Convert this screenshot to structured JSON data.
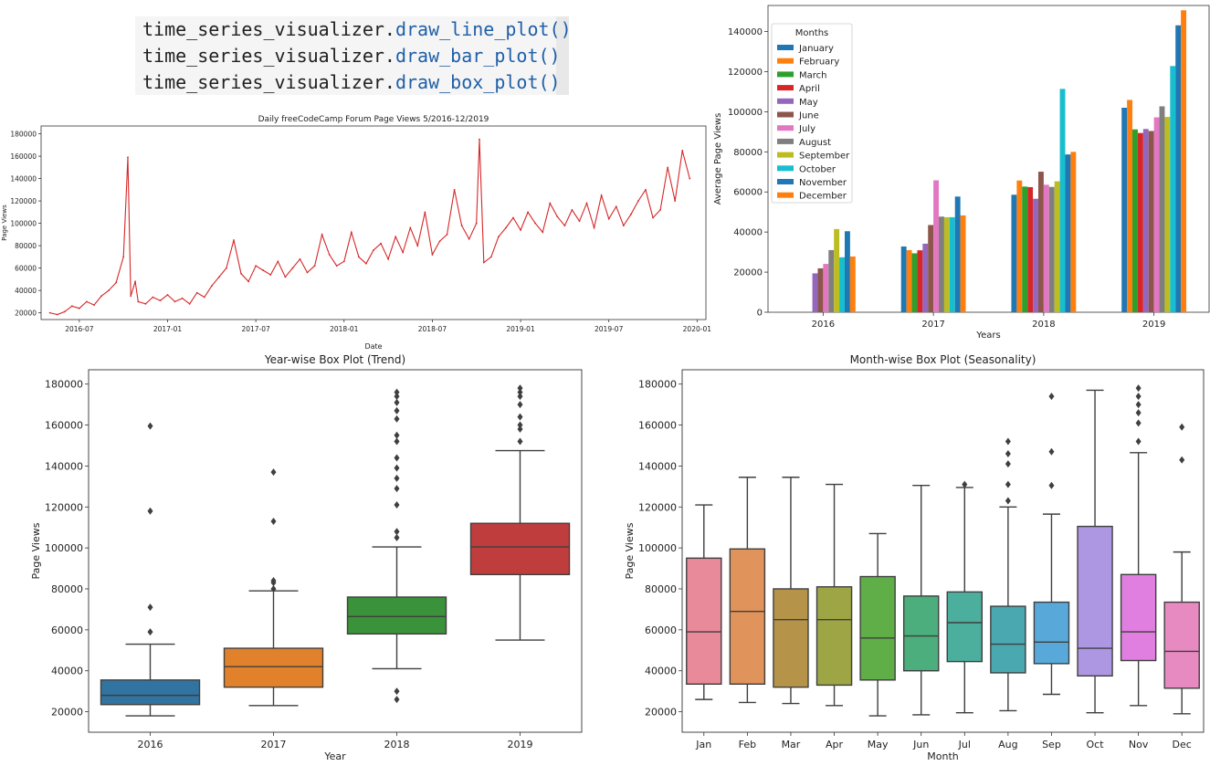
{
  "code": {
    "lines": [
      {
        "prefix": "time_series_visualizer.",
        "call": "draw_line_plot()"
      },
      {
        "prefix": "time_series_visualizer.",
        "call": "draw_bar_plot()"
      },
      {
        "prefix": "time_series_visualizer.",
        "call": "draw_box_plot()"
      }
    ]
  },
  "colors": {
    "line": "#d62728",
    "months": [
      "#1f77b4",
      "#ff7f0e",
      "#2ca02c",
      "#d62728",
      "#9467bd",
      "#8c564b",
      "#e377c2",
      "#7f7f7f",
      "#bcbd22",
      "#17becf",
      "#1f77b4",
      "#ff7f0e"
    ],
    "year_box": [
      "#3274a1",
      "#e1812c",
      "#3a923a",
      "#c03d3e"
    ],
    "month_box": [
      "#e88a9a",
      "#e0935a",
      "#b5944a",
      "#9da545",
      "#5fae48",
      "#4cae7c",
      "#4cae9c",
      "#4aa8b0",
      "#58a9d9",
      "#ae97e2",
      "#e07fe0",
      "#e88ac2"
    ]
  },
  "chart_data": [
    {
      "id": "line",
      "type": "line",
      "title": "Daily freeCodeCamp Forum Page Views 5/2016-12/2019",
      "xlabel": "Date",
      "ylabel": "Page Views",
      "xtick_labels": [
        "2016-07",
        "2017-01",
        "2017-07",
        "2018-01",
        "2018-07",
        "2019-01",
        "2019-07",
        "2020-01"
      ],
      "xtick_months": [
        2,
        8,
        14,
        20,
        26,
        32,
        38,
        44
      ],
      "xlim_months": [
        -0.6,
        44.6
      ],
      "ylim": [
        14000,
        187000
      ],
      "yticks": [
        20000,
        40000,
        60000,
        80000,
        100000,
        120000,
        140000,
        160000,
        180000
      ],
      "ytick_labels": [
        "20000",
        "40000",
        "60000",
        "80000",
        "100000",
        "120000",
        "140000",
        "160000",
        "180000"
      ],
      "x_months": [
        0,
        0.5,
        1,
        1.5,
        2,
        2.5,
        3,
        3.5,
        4,
        4.5,
        5,
        5.3,
        5.5,
        5.8,
        6,
        6.5,
        7,
        7.5,
        8,
        8.5,
        9,
        9.5,
        10,
        10.5,
        11,
        11.5,
        12,
        12.5,
        13,
        13.5,
        14,
        14.5,
        15,
        15.5,
        16,
        16.5,
        17,
        17.5,
        18,
        18.5,
        19,
        19.5,
        20,
        20.5,
        21,
        21.5,
        22,
        22.5,
        23,
        23.5,
        24,
        24.5,
        25,
        25.5,
        26,
        26.5,
        27,
        27.5,
        28,
        28.5,
        29,
        29.2,
        29.5,
        30,
        30.5,
        31,
        31.5,
        32,
        32.5,
        33,
        33.5,
        34,
        34.5,
        35,
        35.5,
        36,
        36.5,
        37,
        37.5,
        38,
        38.5,
        39,
        39.5,
        40,
        40.5,
        41,
        41.5,
        42,
        42.5,
        43,
        43.5
      ],
      "values": [
        20000,
        18500,
        21000,
        26000,
        24000,
        30000,
        27000,
        35000,
        40000,
        47000,
        70000,
        159000,
        35000,
        48000,
        30000,
        28000,
        34000,
        31000,
        36000,
        30000,
        33000,
        28000,
        38000,
        34000,
        44000,
        52000,
        60000,
        85000,
        55000,
        48000,
        62000,
        58000,
        54000,
        66000,
        52000,
        60000,
        68000,
        56000,
        62000,
        90000,
        72000,
        62000,
        66000,
        92000,
        70000,
        64000,
        76000,
        82000,
        68000,
        88000,
        74000,
        96000,
        80000,
        110000,
        72000,
        84000,
        90000,
        130000,
        98000,
        86000,
        100000,
        175000,
        65000,
        70000,
        88000,
        96000,
        105000,
        94000,
        110000,
        100000,
        92000,
        118000,
        106000,
        98000,
        112000,
        102000,
        118000,
        96000,
        125000,
        104000,
        115000,
        98000,
        108000,
        120000,
        130000,
        105000,
        112000,
        150000,
        120000,
        165000,
        140000
      ]
    },
    {
      "id": "bar",
      "type": "bar",
      "xlabel": "Years",
      "ylabel": "Average Page Views",
      "categories": [
        "2016",
        "2017",
        "2018",
        "2019"
      ],
      "ylim": [
        0,
        153000
      ],
      "yticks": [
        0,
        20000,
        40000,
        60000,
        80000,
        100000,
        120000,
        140000
      ],
      "ytick_labels": [
        "0",
        "20000",
        "40000",
        "60000",
        "80000",
        "100000",
        "120000",
        "140000"
      ],
      "legend_title": "Months",
      "legend_position": "top-left",
      "series": [
        {
          "name": "January",
          "values": [
            0,
            32800,
            58600,
            102000
          ]
        },
        {
          "name": "February",
          "values": [
            0,
            31000,
            65700,
            105900
          ]
        },
        {
          "name": "March",
          "values": [
            0,
            29400,
            62700,
            91200
          ]
        },
        {
          "name": "April",
          "values": [
            0,
            30900,
            62400,
            89400
          ]
        },
        {
          "name": "May",
          "values": [
            19400,
            34200,
            56600,
            91400
          ]
        },
        {
          "name": "June",
          "values": [
            21900,
            43500,
            70100,
            90400
          ]
        },
        {
          "name": "July",
          "values": [
            24100,
            65800,
            63600,
            97200
          ]
        },
        {
          "name": "August",
          "values": [
            31000,
            47700,
            62500,
            102700
          ]
        },
        {
          "name": "September",
          "values": [
            41500,
            47400,
            65300,
            97400
          ]
        },
        {
          "name": "October",
          "values": [
            27400,
            47400,
            111400,
            122800
          ]
        },
        {
          "name": "November",
          "values": [
            40400,
            57700,
            78700,
            143100
          ]
        },
        {
          "name": "December",
          "values": [
            27800,
            48300,
            80000,
            150600
          ]
        }
      ]
    },
    {
      "id": "year_box",
      "type": "box",
      "title": "Year-wise Box Plot (Trend)",
      "xlabel": "Year",
      "ylabel": "Page Views",
      "categories": [
        "2016",
        "2017",
        "2018",
        "2019"
      ],
      "ylim": [
        10000,
        187000
      ],
      "yticks": [
        20000,
        40000,
        60000,
        80000,
        100000,
        120000,
        140000,
        160000,
        180000
      ],
      "ytick_labels": [
        "20000",
        "40000",
        "60000",
        "80000",
        "100000",
        "120000",
        "140000",
        "160000",
        "180000"
      ],
      "boxes": [
        {
          "whislo": 18000,
          "q1": 23500,
          "med": 28000,
          "q3": 35500,
          "whishi": 53000,
          "fliers": [
            59000,
            71000,
            118000,
            159500
          ]
        },
        {
          "whislo": 23000,
          "q1": 32000,
          "med": 42000,
          "q3": 51000,
          "whishi": 79000,
          "fliers": [
            80000,
            83000,
            84000,
            113000,
            137000
          ]
        },
        {
          "whislo": 41000,
          "q1": 58000,
          "med": 66500,
          "q3": 76000,
          "whishi": 100500,
          "fliers": [
            26000,
            30000,
            105000,
            108000,
            121000,
            129000,
            134000,
            139000,
            144000,
            152000,
            155000,
            163000,
            167000,
            171000,
            174000,
            176000
          ]
        },
        {
          "whislo": 55000,
          "q1": 87000,
          "med": 100500,
          "q3": 112000,
          "whishi": 147500,
          "fliers": [
            152000,
            158000,
            160000,
            164000,
            170000,
            174000,
            176000,
            178000
          ]
        }
      ]
    },
    {
      "id": "month_box",
      "type": "box",
      "title": "Month-wise Box Plot (Seasonality)",
      "xlabel": "Month",
      "ylabel": "Page Views",
      "categories": [
        "Jan",
        "Feb",
        "Mar",
        "Apr",
        "May",
        "Jun",
        "Jul",
        "Aug",
        "Sep",
        "Oct",
        "Nov",
        "Dec"
      ],
      "ylim": [
        10000,
        187000
      ],
      "yticks": [
        20000,
        40000,
        60000,
        80000,
        100000,
        120000,
        140000,
        160000,
        180000
      ],
      "ytick_labels": [
        "20000",
        "40000",
        "60000",
        "80000",
        "100000",
        "120000",
        "140000",
        "160000",
        "180000"
      ],
      "boxes": [
        {
          "whislo": 26000,
          "q1": 33500,
          "med": 59000,
          "q3": 95000,
          "whishi": 121000,
          "fliers": []
        },
        {
          "whislo": 24500,
          "q1": 33500,
          "med": 69000,
          "q3": 99500,
          "whishi": 134500,
          "fliers": []
        },
        {
          "whislo": 24000,
          "q1": 32000,
          "med": 65000,
          "q3": 80000,
          "whishi": 134500,
          "fliers": []
        },
        {
          "whislo": 23000,
          "q1": 33000,
          "med": 65000,
          "q3": 81000,
          "whishi": 131000,
          "fliers": []
        },
        {
          "whislo": 18000,
          "q1": 35500,
          "med": 56000,
          "q3": 86000,
          "whishi": 107000,
          "fliers": []
        },
        {
          "whislo": 18500,
          "q1": 40000,
          "med": 57000,
          "q3": 76500,
          "whishi": 130500,
          "fliers": []
        },
        {
          "whislo": 19500,
          "q1": 44500,
          "med": 63500,
          "q3": 78500,
          "whishi": 129500,
          "fliers": [
            131000
          ]
        },
        {
          "whislo": 20500,
          "q1": 39000,
          "med": 53000,
          "q3": 71500,
          "whishi": 120000,
          "fliers": [
            123000,
            131000,
            141000,
            146000,
            152000
          ]
        },
        {
          "whislo": 28500,
          "q1": 43500,
          "med": 54000,
          "q3": 73500,
          "whishi": 116500,
          "fliers": [
            130500,
            147000,
            174000
          ]
        },
        {
          "whislo": 19500,
          "q1": 37500,
          "med": 51000,
          "q3": 110500,
          "whishi": 177000,
          "fliers": []
        },
        {
          "whislo": 23000,
          "q1": 45000,
          "med": 59000,
          "q3": 87000,
          "whishi": 146500,
          "fliers": [
            152000,
            161000,
            166000,
            170000,
            174000,
            178000
          ]
        },
        {
          "whislo": 19000,
          "q1": 31500,
          "med": 49500,
          "q3": 73500,
          "whishi": 98000,
          "fliers": [
            143000,
            159000
          ]
        }
      ]
    }
  ]
}
